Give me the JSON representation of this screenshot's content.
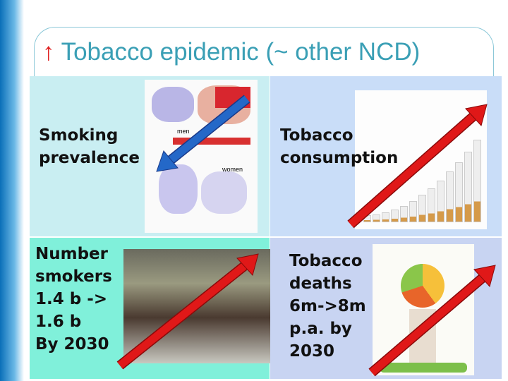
{
  "title": {
    "arrow": "↑",
    "text": "Tobacco epidemic (~ other NCD)"
  },
  "panels": [
    {
      "lines": [
        "Smoking",
        "prevalence"
      ],
      "image_labels": [
        "men",
        "women"
      ]
    },
    {
      "lines": [
        "Tobacco",
        "consumption"
      ]
    },
    {
      "lines": [
        "Number",
        "smokers",
        "1.4 b ->",
        "1.6 b",
        "By 2030"
      ]
    },
    {
      "lines": [
        "Tobacco",
        "deaths",
        "6m->8m",
        "p.a. by",
        "2030"
      ]
    }
  ]
}
